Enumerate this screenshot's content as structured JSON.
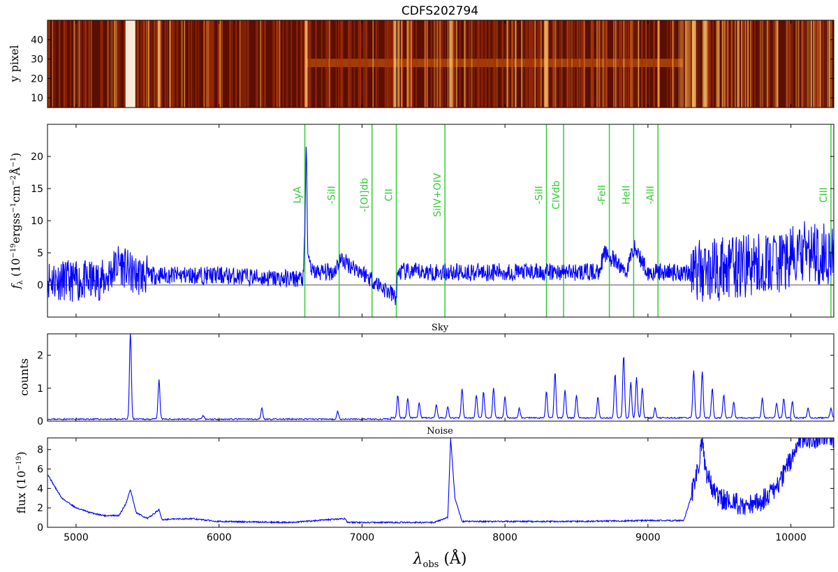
{
  "figure": {
    "title": "CDFS202794"
  },
  "colors": {
    "spectrum": "#0000ff",
    "lines": "#33cc33",
    "zero": "#888888"
  },
  "chart_data": [
    {
      "type": "heatmap",
      "panel": "2d-spectrum",
      "title": "CDFS202794",
      "ylabel": "y pixel",
      "ylim": [
        5,
        50
      ],
      "xlim": [
        4800,
        10300
      ],
      "yticks": [
        10,
        20,
        30,
        40
      ],
      "trace_row": 28,
      "bright_columns": [
        5380,
        5580,
        6610,
        7230,
        7620,
        8290,
        9320,
        9400
      ],
      "colormap": "afmhot"
    },
    {
      "type": "line",
      "panel": "1d-spectrum",
      "ylabel": "f_λ (10^-19 ergss^-1 cm^-2 Å^-1)",
      "ylim": [
        -5,
        25
      ],
      "xlim": [
        4800,
        10300
      ],
      "yticks": [
        0,
        5,
        10,
        15,
        20
      ],
      "continuum_level": 1.5,
      "series": [
        {
          "x": [
            4800,
            5000,
            5200,
            5300,
            5400,
            6000,
            6400,
            6590,
            6600,
            6610,
            6620,
            6650,
            6800,
            6850,
            7000,
            7240,
            7250,
            7500,
            7800,
            8000,
            8300,
            8500,
            8650,
            8700,
            8850,
            8900,
            9000,
            9300,
            9500,
            9700,
            9800,
            10000,
            10100,
            10300
          ],
          "y": [
            1.0,
            0.5,
            0.8,
            3.5,
            1.5,
            1.5,
            1.0,
            1.0,
            8.0,
            23.0,
            5.0,
            2.0,
            2.0,
            4.0,
            2.0,
            -2.0,
            2.0,
            2.0,
            2.0,
            2.0,
            2.0,
            2.0,
            2.0,
            5.0,
            2.0,
            6.0,
            2.0,
            2.0,
            2.5,
            3.0,
            3.0,
            4.0,
            5.0,
            5.0
          ]
        }
      ],
      "line_ids": [
        {
          "label": "LyA",
          "wavelength": 6600
        },
        {
          "label": "-SiII",
          "wavelength": 6840
        },
        {
          "label": "-[OI]db",
          "wavelength": 7070
        },
        {
          "label": "CII",
          "wavelength": 7240
        },
        {
          "label": "SiIV+OIV",
          "wavelength": 7580
        },
        {
          "label": "-SiII",
          "wavelength": 8290
        },
        {
          "label": "CIVdb",
          "wavelength": 8410
        },
        {
          "label": "-FeII",
          "wavelength": 8730
        },
        {
          "label": "HeII",
          "wavelength": 8900
        },
        {
          "label": "-AlII",
          "wavelength": 9070
        },
        {
          "label": "CIII",
          "wavelength": 10280
        }
      ]
    },
    {
      "type": "line",
      "panel": "sky",
      "title": "Sky",
      "ylabel": "counts",
      "ylim": [
        0,
        2.65
      ],
      "xlim": [
        4800,
        10300
      ],
      "yticks": [
        0,
        1,
        2
      ],
      "peaks": [
        [
          5380,
          2.65
        ],
        [
          5580,
          1.2
        ],
        [
          5890,
          0.1
        ],
        [
          6300,
          0.35
        ],
        [
          6830,
          0.25
        ],
        [
          7250,
          0.7
        ],
        [
          7320,
          0.6
        ],
        [
          7400,
          0.45
        ],
        [
          7520,
          0.4
        ],
        [
          7600,
          0.35
        ],
        [
          7700,
          0.9
        ],
        [
          7800,
          0.7
        ],
        [
          7850,
          0.8
        ],
        [
          7920,
          0.9
        ],
        [
          8000,
          0.65
        ],
        [
          8100,
          0.3
        ],
        [
          8290,
          0.8
        ],
        [
          8350,
          1.4
        ],
        [
          8420,
          0.85
        ],
        [
          8500,
          0.7
        ],
        [
          8650,
          0.65
        ],
        [
          8770,
          1.35
        ],
        [
          8830,
          1.9
        ],
        [
          8880,
          1.1
        ],
        [
          8920,
          1.25
        ],
        [
          8960,
          0.9
        ],
        [
          9050,
          0.3
        ],
        [
          9320,
          1.45
        ],
        [
          9380,
          1.4
        ],
        [
          9450,
          0.9
        ],
        [
          9530,
          0.7
        ],
        [
          9600,
          0.5
        ],
        [
          9800,
          0.6
        ],
        [
          9900,
          0.45
        ],
        [
          9950,
          0.6
        ],
        [
          10010,
          0.5
        ],
        [
          10120,
          0.3
        ],
        [
          10280,
          0.3
        ]
      ]
    },
    {
      "type": "line",
      "panel": "noise",
      "title": "Noise",
      "ylabel": "flux (10^-19)",
      "xlabel": "λ_obs (Å)",
      "ylim": [
        0,
        9.2
      ],
      "xlim": [
        4800,
        10300
      ],
      "yticks": [
        0,
        2,
        4,
        6,
        8
      ],
      "xticks": [
        5000,
        6000,
        7000,
        8000,
        9000,
        10000
      ],
      "series": [
        {
          "x": [
            4800,
            4850,
            4900,
            5000,
            5100,
            5200,
            5300,
            5350,
            5380,
            5420,
            5500,
            5580,
            5600,
            5800,
            6000,
            6500,
            6880,
            6900,
            7000,
            7500,
            7600,
            7620,
            7650,
            7700,
            8000,
            8500,
            9000,
            9250,
            9300,
            9350,
            9380,
            9400,
            9450,
            9500,
            9600,
            9700,
            9800,
            9900,
            10000,
            10050,
            10100
          ],
          "y": [
            5.5,
            4.2,
            3.0,
            2.0,
            1.5,
            1.2,
            1.2,
            2.5,
            3.9,
            1.5,
            0.9,
            1.8,
            0.8,
            0.9,
            0.6,
            0.5,
            0.9,
            0.5,
            0.5,
            0.5,
            1.0,
            9.2,
            3.0,
            0.6,
            0.6,
            0.6,
            0.7,
            0.7,
            3.0,
            6.0,
            9.2,
            6.0,
            4.0,
            3.0,
            2.5,
            2.2,
            2.8,
            4.0,
            7.0,
            9.2,
            9.2
          ]
        }
      ]
    }
  ]
}
